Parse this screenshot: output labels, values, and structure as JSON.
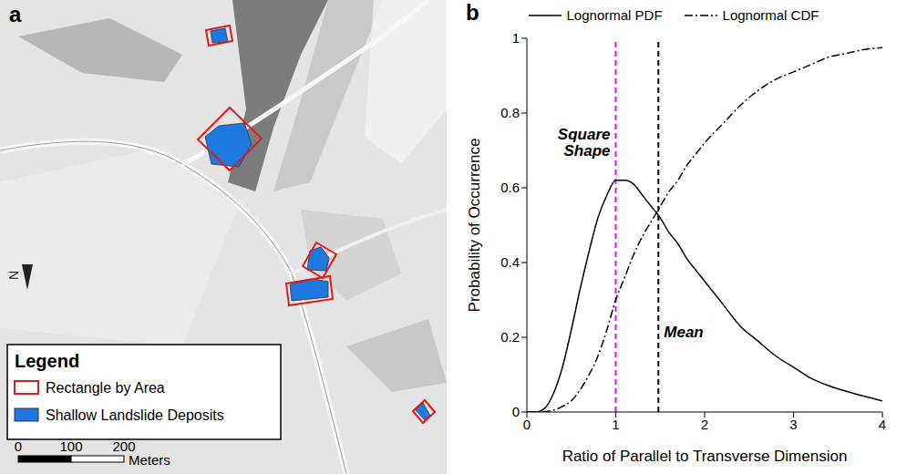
{
  "map": {
    "label": "a",
    "legend": {
      "title": "Legend",
      "entries": [
        {
          "name": "Rectangle by Area",
          "color": "#e31a1c",
          "marker": "outline"
        },
        {
          "name": "Shallow Landslide Deposits",
          "color": "#1f78e0",
          "marker": "filled"
        }
      ]
    },
    "scale_bar": {
      "ticks": [
        0,
        100,
        200
      ],
      "unit": "Meters"
    },
    "north_arrow": "N"
  },
  "chart_data": {
    "type": "line",
    "label": "b",
    "xlabel": "Ratio of Parallel to Transverse Dimension",
    "ylabel": "Probability of Occurrence",
    "x": [
      0,
      0.1,
      0.2,
      0.3,
      0.4,
      0.5,
      0.6,
      0.7,
      0.8,
      0.9,
      1.0,
      1.1,
      1.2,
      1.3,
      1.4,
      1.5,
      1.6,
      1.7,
      1.8,
      1.9,
      2.0,
      2.2,
      2.4,
      2.6,
      2.8,
      3.0,
      3.2,
      3.4,
      3.6,
      3.8,
      4.0
    ],
    "series": [
      {
        "name": "Lognormal PDF",
        "color": "#000000",
        "line_style": "solid",
        "values": [
          0,
          0,
          0.01,
          0.05,
          0.12,
          0.22,
          0.33,
          0.43,
          0.52,
          0.58,
          0.62,
          0.62,
          0.61,
          0.58,
          0.55,
          0.52,
          0.48,
          0.45,
          0.41,
          0.38,
          0.35,
          0.29,
          0.23,
          0.19,
          0.15,
          0.12,
          0.09,
          0.07,
          0.055,
          0.042,
          0.03
        ]
      },
      {
        "name": "Lognormal CDF",
        "color": "#000000",
        "line_style": "dashdot",
        "values": [
          0,
          0,
          0.001,
          0.005,
          0.015,
          0.03,
          0.06,
          0.1,
          0.15,
          0.22,
          0.3,
          0.36,
          0.42,
          0.47,
          0.51,
          0.55,
          0.59,
          0.62,
          0.66,
          0.69,
          0.72,
          0.77,
          0.82,
          0.86,
          0.89,
          0.91,
          0.93,
          0.95,
          0.96,
          0.97,
          0.975
        ]
      }
    ],
    "annotations": [
      {
        "text": "Square Shape",
        "x": 1,
        "color": "#ff00ff",
        "line_style": "dashed"
      },
      {
        "text": "Mean",
        "x": 1.48,
        "color": "#000000",
        "line_style": "dashed"
      }
    ],
    "xlim": [
      0,
      4
    ],
    "xticks": [
      0,
      1,
      2,
      3,
      4
    ],
    "ylim": [
      0,
      1
    ],
    "yticks": [
      0,
      0.2,
      0.4,
      0.6,
      0.8,
      1
    ],
    "grid": false,
    "legend": "top"
  }
}
